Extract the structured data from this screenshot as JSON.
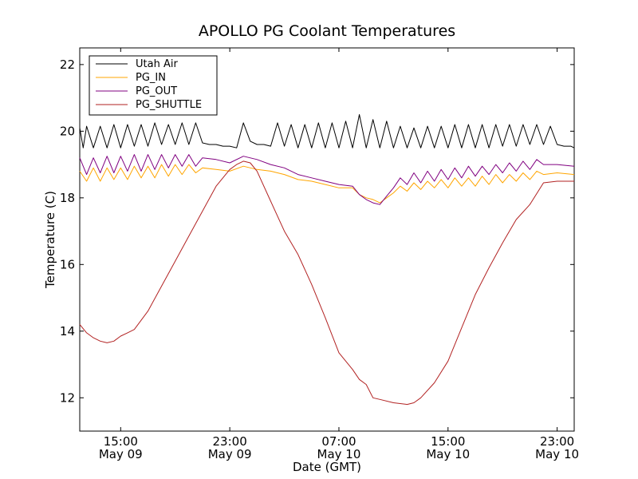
{
  "chart_data": {
    "type": "line",
    "title": "APOLLO PG Coolant Temperatures",
    "xlabel": "Date (GMT)",
    "ylabel": "Temperature (C)",
    "xlim": [
      11.0,
      47.25
    ],
    "ylim": [
      11.0,
      22.5
    ],
    "legend_position": "top-left",
    "x_ticks": [
      {
        "value": 14.0,
        "time": "15:00",
        "date": "May 09"
      },
      {
        "value": 22.0,
        "time": "23:00",
        "date": "May 09"
      },
      {
        "value": 30.0,
        "time": "07:00",
        "date": "May 10"
      },
      {
        "value": 38.0,
        "time": "15:00",
        "date": "May 10"
      },
      {
        "value": 46.0,
        "time": "23:00",
        "date": "May 10"
      }
    ],
    "y_ticks": [
      12,
      14,
      16,
      18,
      20,
      22
    ],
    "series": [
      {
        "name": "Utah Air",
        "color": "#000000",
        "x": [
          11.0,
          11.25,
          11.5,
          12.0,
          12.5,
          13.0,
          13.5,
          14.0,
          14.5,
          15.0,
          15.5,
          16.0,
          16.5,
          17.0,
          17.5,
          18.0,
          18.5,
          19.0,
          19.5,
          20.0,
          20.5,
          21.0,
          21.5,
          22.0,
          22.5,
          23.0,
          23.5,
          24.0,
          24.5,
          25.0,
          25.5,
          26.0,
          26.5,
          27.0,
          27.5,
          28.0,
          28.5,
          29.0,
          29.5,
          30.0,
          30.5,
          31.0,
          31.5,
          32.0,
          32.5,
          33.0,
          33.5,
          34.0,
          34.5,
          35.0,
          35.5,
          36.0,
          36.5,
          37.0,
          37.5,
          38.0,
          38.5,
          39.0,
          39.5,
          40.0,
          40.5,
          41.0,
          41.5,
          42.0,
          42.5,
          43.0,
          43.5,
          44.0,
          44.5,
          45.0,
          45.5,
          46.0,
          46.5,
          47.0,
          47.25
        ],
        "values": [
          20.1,
          19.5,
          20.15,
          19.5,
          20.15,
          19.5,
          20.2,
          19.5,
          20.2,
          19.55,
          20.2,
          19.55,
          20.25,
          19.6,
          20.2,
          19.6,
          20.25,
          19.6,
          20.25,
          19.65,
          19.6,
          19.6,
          19.55,
          19.55,
          19.5,
          20.25,
          19.7,
          19.6,
          19.6,
          19.55,
          20.25,
          19.55,
          20.2,
          19.5,
          20.2,
          19.5,
          20.25,
          19.5,
          20.25,
          19.5,
          20.3,
          19.5,
          20.5,
          19.5,
          20.35,
          19.5,
          20.3,
          19.5,
          20.15,
          19.5,
          20.1,
          19.5,
          20.15,
          19.5,
          20.15,
          19.5,
          20.2,
          19.5,
          20.2,
          19.5,
          20.2,
          19.5,
          20.2,
          19.55,
          20.2,
          19.55,
          20.2,
          19.6,
          20.2,
          19.6,
          20.15,
          19.6,
          19.55,
          19.55,
          19.5
        ]
      },
      {
        "name": "PG_IN",
        "color": "#ffa500",
        "x": [
          11.0,
          11.5,
          12.0,
          12.5,
          13.0,
          13.5,
          14.0,
          14.5,
          15.0,
          15.5,
          16.0,
          16.5,
          17.0,
          17.5,
          18.0,
          18.5,
          19.0,
          19.5,
          20.0,
          21.0,
          22.0,
          23.0,
          24.0,
          25.0,
          26.0,
          27.0,
          28.0,
          29.0,
          30.0,
          31.0,
          31.5,
          32.0,
          32.5,
          33.0,
          33.5,
          34.0,
          34.5,
          35.0,
          35.5,
          36.0,
          36.5,
          37.0,
          37.5,
          38.0,
          38.5,
          39.0,
          39.5,
          40.0,
          40.5,
          41.0,
          41.5,
          42.0,
          42.5,
          43.0,
          43.5,
          44.0,
          44.5,
          45.0,
          46.0,
          47.25
        ],
        "values": [
          18.8,
          18.5,
          18.9,
          18.5,
          18.9,
          18.55,
          18.9,
          18.55,
          18.95,
          18.6,
          18.95,
          18.6,
          19.0,
          18.65,
          19.0,
          18.7,
          19.0,
          18.75,
          18.9,
          18.85,
          18.8,
          18.95,
          18.85,
          18.8,
          18.7,
          18.55,
          18.5,
          18.4,
          18.3,
          18.3,
          18.1,
          18.0,
          17.95,
          17.85,
          18.0,
          18.15,
          18.35,
          18.2,
          18.45,
          18.25,
          18.5,
          18.3,
          18.55,
          18.3,
          18.6,
          18.35,
          18.6,
          18.35,
          18.65,
          18.4,
          18.7,
          18.45,
          18.7,
          18.5,
          18.75,
          18.55,
          18.8,
          18.7,
          18.75,
          18.7
        ]
      },
      {
        "name": "PG_OUT",
        "color": "#800080",
        "x": [
          11.0,
          11.5,
          12.0,
          12.5,
          13.0,
          13.5,
          14.0,
          14.5,
          15.0,
          15.5,
          16.0,
          16.5,
          17.0,
          17.5,
          18.0,
          18.5,
          19.0,
          19.5,
          20.0,
          21.0,
          22.0,
          23.0,
          24.0,
          25.0,
          26.0,
          27.0,
          28.0,
          29.0,
          30.0,
          31.0,
          31.5,
          32.0,
          32.5,
          33.0,
          33.5,
          34.0,
          34.5,
          35.0,
          35.5,
          36.0,
          36.5,
          37.0,
          37.5,
          38.0,
          38.5,
          39.0,
          39.5,
          40.0,
          40.5,
          41.0,
          41.5,
          42.0,
          42.5,
          43.0,
          43.5,
          44.0,
          44.5,
          45.0,
          46.0,
          47.25
        ],
        "values": [
          19.2,
          18.7,
          19.2,
          18.75,
          19.25,
          18.75,
          19.25,
          18.8,
          19.3,
          18.8,
          19.3,
          18.85,
          19.3,
          18.9,
          19.3,
          18.95,
          19.3,
          18.95,
          19.2,
          19.15,
          19.05,
          19.25,
          19.15,
          19.0,
          18.9,
          18.7,
          18.6,
          18.5,
          18.4,
          18.35,
          18.1,
          17.95,
          17.85,
          17.8,
          18.05,
          18.3,
          18.6,
          18.4,
          18.75,
          18.45,
          18.8,
          18.5,
          18.85,
          18.55,
          18.9,
          18.6,
          18.95,
          18.65,
          18.95,
          18.7,
          19.0,
          18.75,
          19.05,
          18.8,
          19.1,
          18.85,
          19.15,
          19.0,
          19.0,
          18.95
        ]
      },
      {
        "name": "PG_SHUTTLE",
        "color": "#b22222",
        "x": [
          11.0,
          11.5,
          12.0,
          12.5,
          13.0,
          13.5,
          14.0,
          14.5,
          15.0,
          16.0,
          17.0,
          18.0,
          19.0,
          20.0,
          21.0,
          22.0,
          22.5,
          23.0,
          23.5,
          24.0,
          25.0,
          26.0,
          27.0,
          28.0,
          29.0,
          30.0,
          30.5,
          31.0,
          31.5,
          32.0,
          32.5,
          33.0,
          34.0,
          35.0,
          35.5,
          36.0,
          37.0,
          38.0,
          39.0,
          40.0,
          41.0,
          42.0,
          43.0,
          44.0,
          45.0,
          46.0,
          47.25
        ],
        "values": [
          14.2,
          13.95,
          13.8,
          13.7,
          13.65,
          13.7,
          13.85,
          13.95,
          14.05,
          14.6,
          15.35,
          16.1,
          16.85,
          17.6,
          18.35,
          18.85,
          19.0,
          19.1,
          19.05,
          18.8,
          17.9,
          17.0,
          16.3,
          15.4,
          14.4,
          13.35,
          13.1,
          12.85,
          12.55,
          12.4,
          12.0,
          11.95,
          11.85,
          11.8,
          11.85,
          12.0,
          12.45,
          13.1,
          14.1,
          15.1,
          15.9,
          16.65,
          17.35,
          17.8,
          18.45,
          18.5,
          18.5
        ]
      }
    ]
  }
}
